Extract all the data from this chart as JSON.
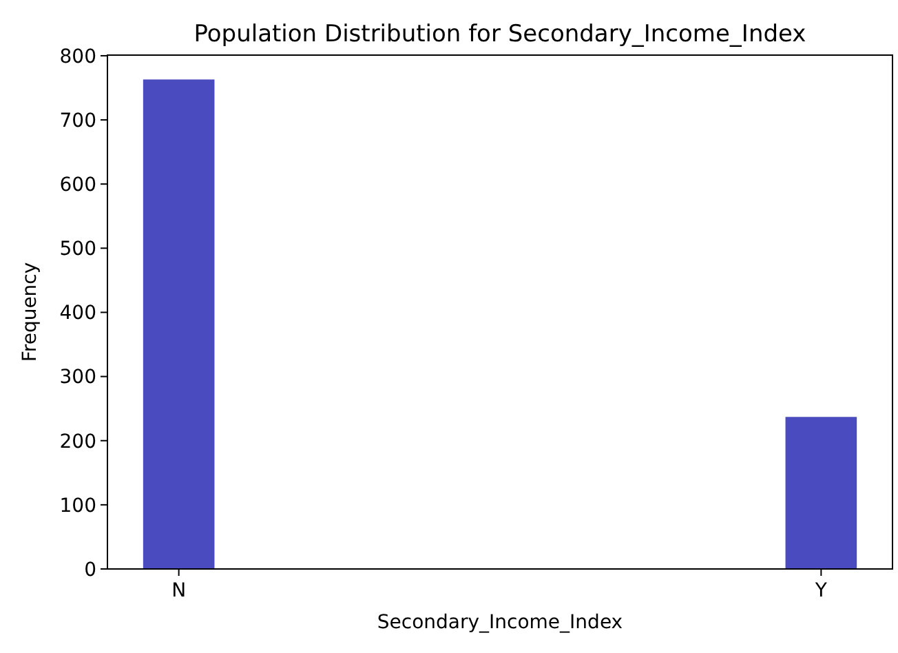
{
  "chart_data": {
    "type": "bar",
    "title": "Population Distribution for Secondary_Income_Index",
    "xlabel": "Secondary_Income_Index",
    "ylabel": "Frequency",
    "categories": [
      "N",
      null,
      null,
      null,
      null,
      null,
      null,
      null,
      null,
      "Y"
    ],
    "values": [
      763,
      0,
      0,
      0,
      0,
      0,
      0,
      0,
      0,
      237
    ],
    "color": "#4b4bc0",
    "ylim": [
      0,
      801
    ],
    "yticks": [
      0,
      100,
      200,
      300,
      400,
      500,
      600,
      700,
      800
    ]
  }
}
